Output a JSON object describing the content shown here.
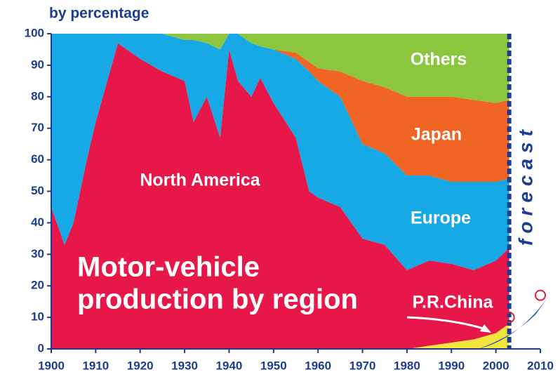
{
  "chart_data": {
    "type": "stacked_area",
    "subtitle": "by percentage",
    "title": [
      "Motor-vehicle",
      "production by region"
    ],
    "x": [
      1900,
      1903,
      1905,
      1908,
      1910,
      1915,
      1920,
      1925,
      1930,
      1932,
      1935,
      1938,
      1940,
      1942,
      1945,
      1947,
      1950,
      1955,
      1958,
      1960,
      1965,
      1970,
      1975,
      1980,
      1985,
      1990,
      1995,
      2000,
      2003
    ],
    "series": [
      {
        "name": "P.R.China",
        "color": "#f3e53c",
        "values": [
          0,
          0,
          0,
          0,
          0,
          0,
          0,
          0,
          0,
          0,
          0,
          0,
          0,
          0,
          0,
          0,
          0,
          0,
          0,
          0,
          0,
          0,
          0,
          0,
          1,
          2,
          3,
          5,
          8
        ]
      },
      {
        "name": "North America",
        "color": "#e8174a",
        "values": [
          45,
          33,
          40,
          60,
          72,
          97,
          92,
          88,
          85,
          72,
          80,
          67,
          95,
          85,
          80,
          86,
          78,
          67,
          50,
          48,
          45,
          35,
          33,
          25,
          27,
          25,
          22,
          23,
          24
        ]
      },
      {
        "name": "Europe",
        "color": "#17a9e6",
        "values": [
          55,
          67,
          60,
          40,
          28,
          3,
          8,
          12,
          13,
          26,
          17,
          28,
          5,
          15,
          17,
          10,
          17,
          25,
          38,
          37,
          35,
          30,
          29,
          30,
          27,
          26,
          28,
          25,
          22
        ]
      },
      {
        "name": "Japan",
        "color": "#f06524",
        "values": [
          0,
          0,
          0,
          0,
          0,
          0,
          0,
          0,
          0,
          0,
          0,
          0,
          0,
          0,
          0,
          0,
          0,
          2,
          3,
          4,
          8,
          20,
          21,
          25,
          25,
          27,
          26,
          25,
          25
        ]
      },
      {
        "name": "Others",
        "color": "#8cc63f",
        "values": [
          0,
          0,
          0,
          0,
          0,
          0,
          0,
          0,
          2,
          2,
          3,
          5,
          0,
          0,
          3,
          4,
          5,
          6,
          9,
          11,
          12,
          15,
          17,
          20,
          20,
          20,
          21,
          22,
          21
        ]
      }
    ],
    "forecast": {
      "label": "forecast",
      "x": [
        2003,
        2010
      ],
      "values": [
        10,
        17
      ]
    },
    "xlim": [
      1900,
      2010
    ],
    "xticks": [
      1900,
      1910,
      1920,
      1930,
      1940,
      1950,
      1960,
      1970,
      1980,
      1990,
      2000,
      2010
    ],
    "ylim": [
      0,
      100
    ],
    "yticks": [
      0,
      10,
      20,
      30,
      40,
      50,
      60,
      70,
      80,
      90,
      100
    ]
  }
}
